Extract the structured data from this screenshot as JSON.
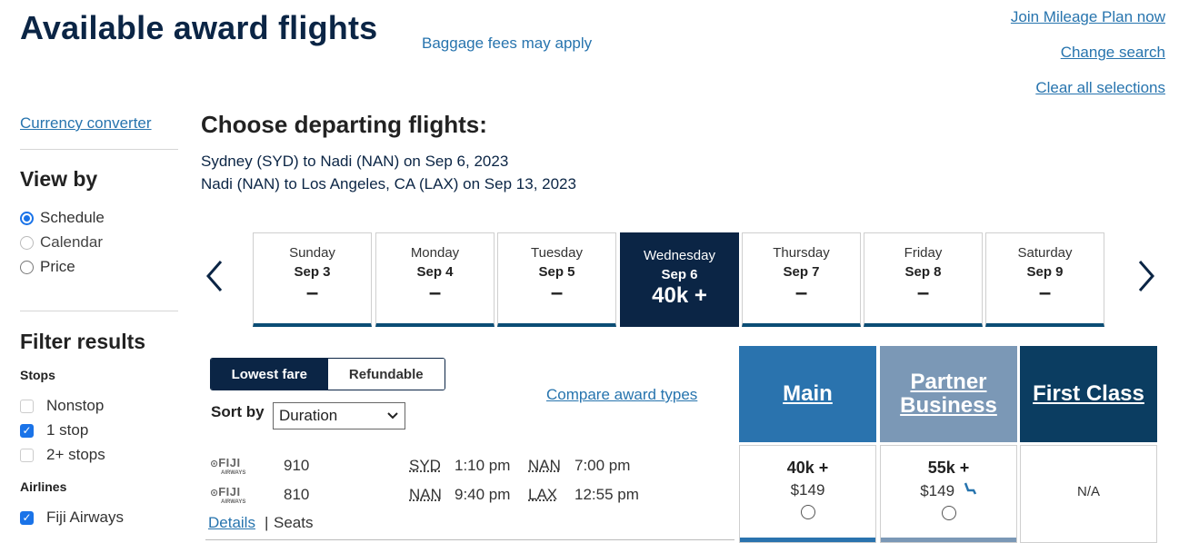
{
  "header": {
    "title": "Available award flights",
    "baggage": "Baggage fees may apply",
    "join": "Join Mileage Plan now",
    "change": "Change search",
    "clear": "Clear all selections"
  },
  "sidebar": {
    "currency": "Currency converter",
    "view_by": "View by",
    "view_options": [
      {
        "label": "Schedule",
        "selected": true
      },
      {
        "label": "Calendar",
        "selected": false
      },
      {
        "label": "Price",
        "selected": false
      }
    ],
    "filter_title": "Filter results",
    "stops_title": "Stops",
    "stops": [
      {
        "label": "Nonstop",
        "checked": false
      },
      {
        "label": "1 stop",
        "checked": true
      },
      {
        "label": "2+ stops",
        "checked": false
      }
    ],
    "airlines_title": "Airlines",
    "airlines": [
      {
        "label": "Fiji Airways",
        "checked": true
      }
    ]
  },
  "main": {
    "choose": "Choose departing flights:",
    "route1": "Sydney (SYD) to Nadi (NAN) on Sep 6, 2023",
    "route2": "Nadi (NAN) to Los Angeles, CA (LAX) on Sep 13, 2023",
    "days": [
      {
        "day": "Sunday",
        "date": "Sep 3",
        "price": "–",
        "active": false
      },
      {
        "day": "Monday",
        "date": "Sep 4",
        "price": "–",
        "active": false
      },
      {
        "day": "Tuesday",
        "date": "Sep 5",
        "price": "–",
        "active": false
      },
      {
        "day": "Wednesday",
        "date": "Sep 6",
        "price": "40k +",
        "active": true
      },
      {
        "day": "Thursday",
        "date": "Sep 7",
        "price": "–",
        "active": false
      },
      {
        "day": "Friday",
        "date": "Sep 8",
        "price": "–",
        "active": false
      },
      {
        "day": "Saturday",
        "date": "Sep 9",
        "price": "–",
        "active": false
      }
    ],
    "fare_lowest": "Lowest fare",
    "fare_refundable": "Refundable",
    "sort_label": "Sort by",
    "sort_value": "Duration",
    "compare": "Compare award types",
    "details": "Details",
    "separator": "|",
    "seats": "Seats"
  },
  "flight": {
    "logo_big": "FIJI",
    "logo_small": "AIRWAYS",
    "segments": [
      {
        "num": "910",
        "from": "SYD",
        "dep": "1:10 pm",
        "to": "NAN",
        "arr": "7:00 pm"
      },
      {
        "num": "810",
        "from": "NAN",
        "dep": "9:40 pm",
        "to": "LAX",
        "arr": "12:55 pm"
      }
    ]
  },
  "cabins": {
    "main": {
      "title": "Main",
      "miles": "40k +",
      "cash": "$149"
    },
    "partner": {
      "title_line1": "Partner",
      "title_line2": "Business",
      "miles": "55k +",
      "cash": "$149"
    },
    "first": {
      "title": "First Class",
      "value": "N/A"
    }
  },
  "icons": {
    "prev": "chevron-left-icon",
    "next": "chevron-right-icon",
    "seat": "seat-icon"
  }
}
